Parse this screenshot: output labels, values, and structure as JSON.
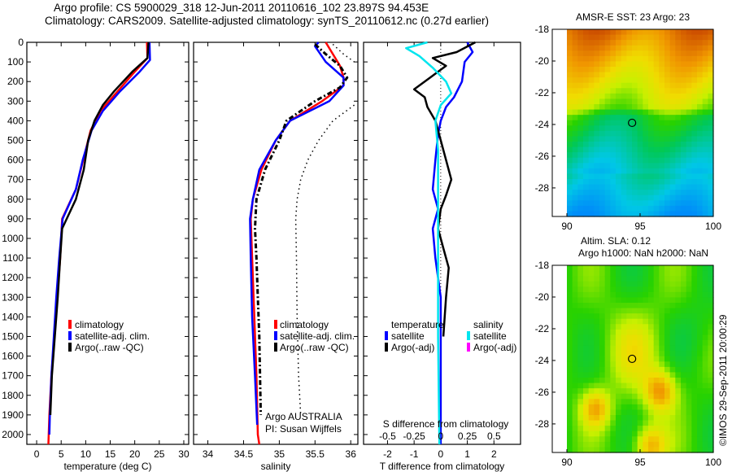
{
  "header": {
    "line1": "Argo profile: CS 5900029_318 12-Jun-2011 20110616_102 23.897S 94.453E",
    "line2": "Climatology: CARS2009. Satellite-adjusted climatology: synTS_20110612.nc (0.27d earlier)"
  },
  "colors": {
    "climatology": "#ff0000",
    "satellite": "#0000ff",
    "argo": "#000000",
    "salinity_satellite": "#00e5ee",
    "salinity_argo": "#ff00ff"
  },
  "chart_data": [
    {
      "id": "temperature",
      "type": "line",
      "xlabel": "temperature (deg C)",
      "ylabel": "",
      "xlim": [
        -2,
        31
      ],
      "ylim": [
        2050,
        0
      ],
      "xticks": [
        0,
        5,
        10,
        15,
        20,
        25,
        30
      ],
      "yticks": [
        0,
        100,
        200,
        300,
        400,
        500,
        600,
        700,
        800,
        900,
        1000,
        1100,
        1200,
        1300,
        1400,
        1500,
        1600,
        1700,
        1800,
        1900,
        2000
      ],
      "legend": [
        "climatology",
        "satellite-adj. clim.",
        "Argo(..raw -QC)"
      ],
      "legend_position": "lower-left",
      "series": [
        {
          "name": "climatology",
          "color": "#ff0000",
          "style": "solid",
          "depth": [
            0,
            80,
            150,
            250,
            350,
            450,
            600,
            750,
            900,
            1100,
            1300,
            1500,
            1700,
            1900,
            2050
          ],
          "values": [
            22.5,
            22.6,
            20.0,
            16.5,
            13.0,
            11.0,
            9.5,
            8.0,
            5.2,
            4.8,
            4.2,
            3.6,
            3.0,
            2.6,
            2.4
          ]
        },
        {
          "name": "satellite-adj. clim.",
          "color": "#0000ff",
          "style": "solid",
          "depth": [
            0,
            90,
            150,
            250,
            350,
            450,
            600,
            750,
            900,
            1100,
            1300,
            1500,
            1700,
            1900,
            2000
          ],
          "values": [
            23.0,
            23.1,
            21.0,
            17.0,
            13.5,
            11.2,
            9.4,
            8.0,
            5.3,
            4.6,
            4.0,
            3.5,
            3.0,
            2.7,
            2.6
          ]
        },
        {
          "name": "Argo(..raw -QC)",
          "color": "#000000",
          "style": "solid",
          "depth": [
            0,
            80,
            150,
            250,
            320,
            400,
            500,
            650,
            800,
            950,
            1100,
            1300,
            1500,
            1700,
            1900
          ],
          "values": [
            22.8,
            22.6,
            19.5,
            15.8,
            13.5,
            11.8,
            10.5,
            9.6,
            8.0,
            5.2,
            4.8,
            4.3,
            3.7,
            3.1,
            2.8
          ]
        }
      ]
    },
    {
      "id": "salinity",
      "type": "line",
      "xlabel": "salinity",
      "xlim": [
        33.8,
        36.1
      ],
      "ylim": [
        2050,
        0
      ],
      "xticks": [
        34,
        34.5,
        35,
        35.5,
        36
      ],
      "legend": [
        "climatology",
        "satellite-adj. clim.",
        "Argo(..raw -QC)"
      ],
      "legend_position": "lower-right",
      "annotation": [
        "Argo AUSTRALIA",
        "PI: Susan Wijffels"
      ],
      "series": [
        {
          "name": "climatology",
          "color": "#ff0000",
          "style": "solid",
          "depth": [
            0,
            60,
            120,
            180,
            220,
            300,
            400,
            500,
            650,
            800,
            900,
            1100,
            1400,
            1700,
            2000,
            2050
          ],
          "values": [
            35.65,
            35.75,
            35.85,
            35.9,
            35.9,
            35.6,
            35.15,
            34.95,
            34.75,
            34.63,
            34.6,
            34.62,
            34.65,
            34.68,
            34.7,
            34.72
          ]
        },
        {
          "name": "satellite-adj. clim.",
          "color": "#0000ff",
          "style": "solid",
          "depth": [
            0,
            20,
            100,
            180,
            220,
            300,
            400,
            500,
            650,
            800,
            900,
            1100,
            1400,
            1700,
            1950
          ],
          "values": [
            35.55,
            35.5,
            35.65,
            35.9,
            35.9,
            35.7,
            35.15,
            34.95,
            34.72,
            34.63,
            34.59,
            34.6,
            34.62,
            34.66,
            34.69
          ]
        },
        {
          "name": "Argo(..raw -QC)",
          "color": "#000000",
          "style": "dashdot",
          "depth": [
            10,
            60,
            120,
            180,
            230,
            300,
            400,
            500,
            650,
            800,
            950,
            1100,
            1300,
            1500,
            1700,
            1900
          ],
          "values": [
            35.5,
            35.65,
            35.85,
            35.95,
            35.85,
            35.5,
            35.1,
            35.0,
            34.8,
            34.68,
            34.66,
            34.68,
            34.7,
            34.72,
            34.73,
            34.74
          ]
        },
        {
          "name": "dotted-upper",
          "color": "#000000",
          "style": "dotted",
          "depth": [
            10,
            60,
            100
          ],
          "values": [
            35.75,
            35.9,
            36.05
          ]
        },
        {
          "name": "dotted-lower",
          "color": "#000000",
          "style": "dotted",
          "depth": [
            320,
            400,
            500,
            600,
            700,
            800,
            900,
            1100,
            1400,
            1700,
            1900
          ],
          "values": [
            36.05,
            35.75,
            35.55,
            35.4,
            35.3,
            35.25,
            35.23,
            35.24,
            35.25,
            35.27,
            35.3
          ]
        }
      ]
    },
    {
      "id": "difference",
      "type": "line",
      "xlabel": "T difference from climatology",
      "x2label": "S difference from climatology",
      "xlim": [
        -2.9,
        3.0
      ],
      "ylim": [
        2050,
        0
      ],
      "xticks": [
        -2,
        -1,
        0,
        1,
        2
      ],
      "x2ticks": [
        "-0.5",
        "-0.25",
        "0",
        "0.25",
        "0.5"
      ],
      "legend_temperature": [
        "temperature",
        "satellite",
        "Argo(-adj)"
      ],
      "legend_salinity": [
        "salinity",
        "satellite",
        "Argo(-adj)"
      ],
      "series": [
        {
          "name": "T satellite",
          "color": "#0000ff",
          "depth": [
            0,
            50,
            100,
            200,
            280,
            330,
            400,
            470,
            600,
            750,
            850,
            950,
            1100,
            1300,
            1600,
            1900,
            2050
          ],
          "values": [
            1.0,
            1.2,
            0.9,
            0.8,
            0.5,
            0.2,
            0.0,
            -0.1,
            -0.2,
            -0.3,
            -0.1,
            -0.3,
            -0.2,
            0.0,
            0.0,
            0.0,
            0.0
          ]
        },
        {
          "name": "T Argo",
          "color": "#000000",
          "depth": [
            0,
            50,
            80,
            120,
            180,
            240,
            280,
            330,
            400,
            500,
            600,
            700,
            780,
            850,
            950,
            1050,
            1150,
            1300,
            1500
          ],
          "values": [
            1.3,
            0.6,
            -0.3,
            0.2,
            -0.4,
            -1.0,
            -0.6,
            -0.5,
            -0.2,
            0.0,
            0.2,
            0.4,
            0.2,
            0.0,
            -0.1,
            0.1,
            0.3,
            0.2,
            0.1
          ]
        },
        {
          "name": "S satellite",
          "color": "#00e5ee",
          "depth": [
            0,
            30,
            70,
            130,
            200,
            260,
            320,
            400,
            550,
            800,
            1100,
            1500,
            2050
          ],
          "values": [
            -0.5,
            -1.3,
            -0.8,
            -0.3,
            0.2,
            0.4,
            0.0,
            -0.2,
            -0.1,
            -0.1,
            -0.1,
            -0.1,
            -0.05
          ]
        }
      ]
    },
    {
      "id": "sst-map",
      "type": "heatmap",
      "title": "AMSR-E SST: 23 Argo: 23",
      "xlim": [
        89,
        100
      ],
      "ylim": [
        -29.8,
        -18
      ],
      "xticks": [
        90,
        95,
        100
      ],
      "yticks": [
        -18,
        -20,
        -22,
        -24,
        -26,
        -28
      ],
      "marker": {
        "lon": 94.453,
        "lat": -23.897
      }
    },
    {
      "id": "sla-map",
      "type": "heatmap",
      "title": "Altim. SLA: 0.12",
      "subtitle": "Argo h1000: NaN h2000: NaN",
      "xlim": [
        89,
        100
      ],
      "ylim": [
        -29.8,
        -18
      ],
      "xticks": [
        90,
        95,
        100
      ],
      "yticks": [
        -18,
        -20,
        -22,
        -24,
        -26,
        -28
      ],
      "marker": {
        "lon": 94.453,
        "lat": -23.897
      }
    }
  ],
  "footer": {
    "credit": "©IMOS 29-Sep-2011 20:00:29"
  }
}
